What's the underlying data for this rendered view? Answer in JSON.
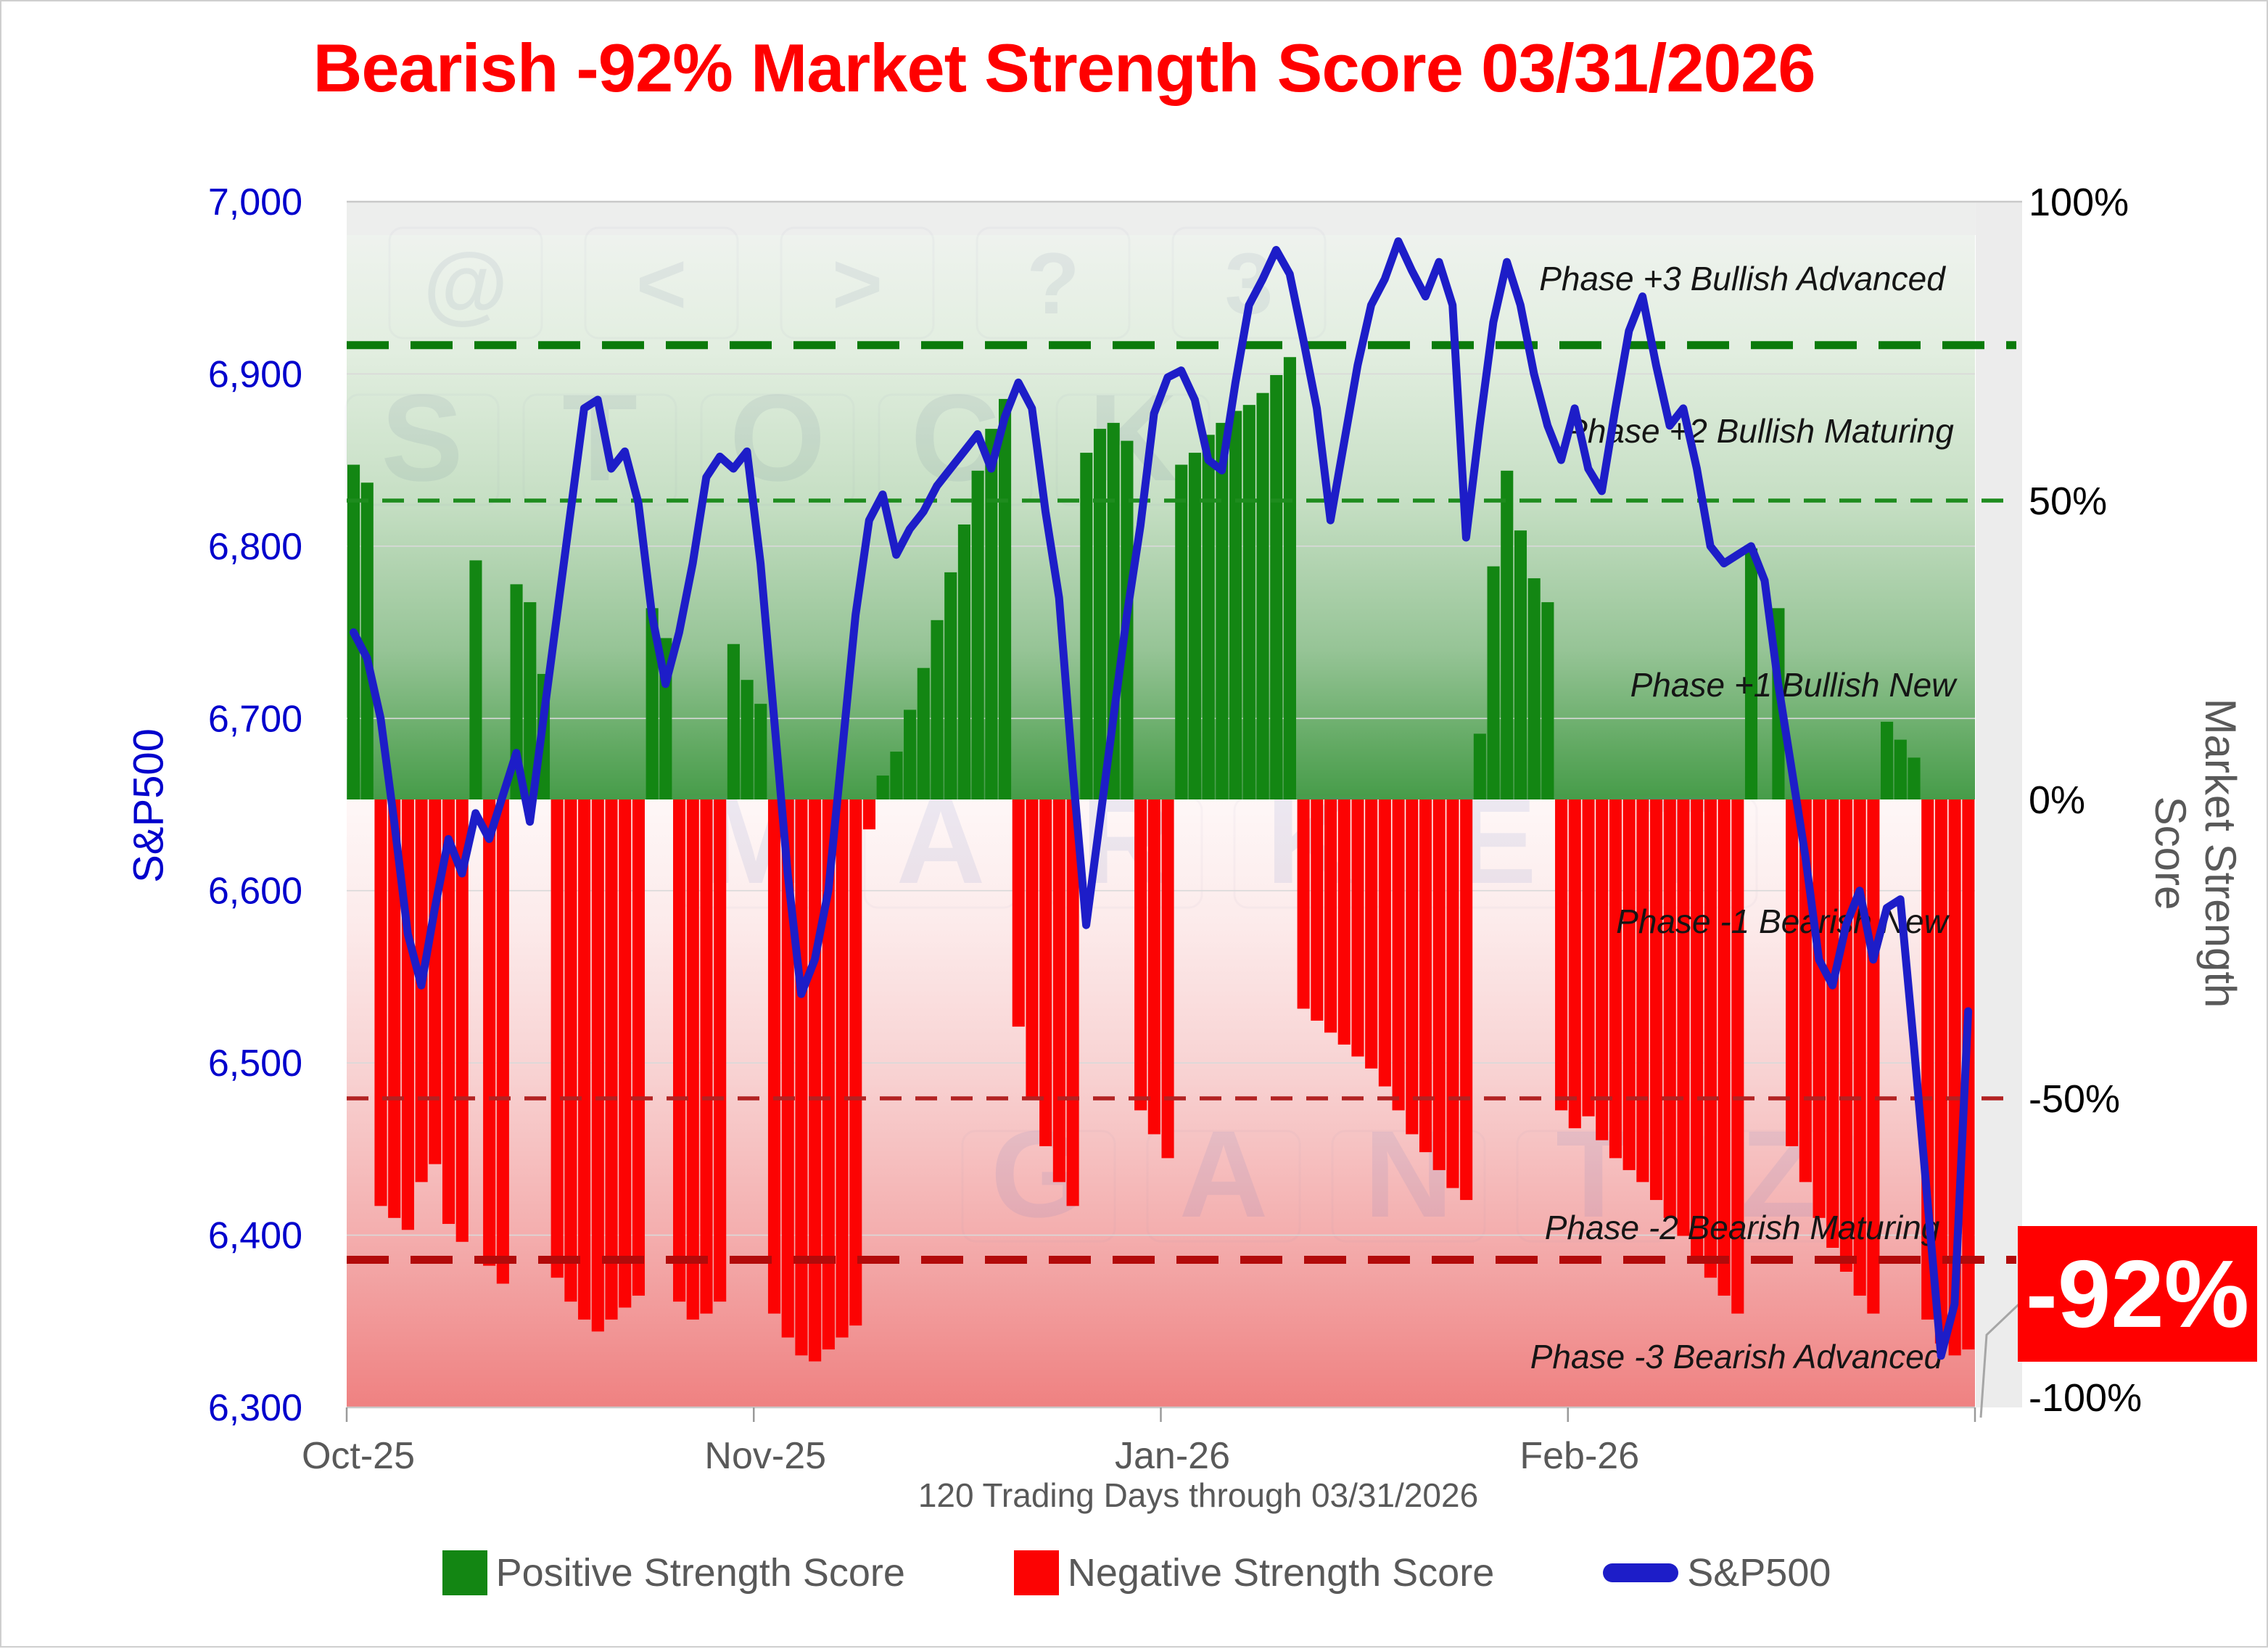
{
  "title": "Bearish -92% Market Strength Score 03/31/2026",
  "badge": {
    "value_label": "-92%",
    "background": "#FF0000",
    "text_color": "#FFFFFF"
  },
  "axes": {
    "left": {
      "title": "S&P500",
      "ticks": [
        "7,000",
        "6,900",
        "6,800",
        "6,700",
        "6,600",
        "6,500",
        "6,400",
        "6,300"
      ],
      "color": "#0000CC"
    },
    "right": {
      "title": "Market Strength Score",
      "ticks": [
        "100%",
        "50%",
        "0%",
        "-50%",
        "-100%"
      ],
      "color": "#595959"
    },
    "x": {
      "ticks": [
        "Oct-25",
        "Nov-25",
        "Jan-26",
        "Feb-26"
      ],
      "title": "120 Trading Days through 03/31/2026"
    }
  },
  "phases": [
    "Phase +3 Bullish Advanced",
    "Phase +2 Bullish Maturing",
    "Phase +1 Bullish New",
    "Phase -1 Bearish New",
    "Phase -2 Bearish Maturing",
    "Phase -3 Bearish Advanced"
  ],
  "legend": [
    {
      "label": "Positive Strength Score",
      "type": "box",
      "color": "#138613"
    },
    {
      "label": "Negative Strength Score",
      "type": "box",
      "color": "#FC0303"
    },
    {
      "label": "S&P500",
      "type": "line",
      "color": "#1D1DC8"
    }
  ],
  "watermark": {
    "symbols": [
      "@",
      "<",
      ">",
      "?",
      "3"
    ],
    "rows": [
      "STOCK",
      "MARKET",
      "GANTZ"
    ]
  },
  "colors": {
    "bar_positive": "#138613",
    "bar_negative": "#FC0303",
    "sp500_line": "#1D1DC8",
    "threshold_green_thick": "#0B7A0B",
    "threshold_green_thin": "#1E8C1E",
    "threshold_red_thin": "#B22222",
    "threshold_red_thick": "#B20A0A",
    "title_red": "#FF0000",
    "axis_blue": "#0000CC",
    "gray_text": "#595959"
  },
  "chart_data": {
    "type": "combo",
    "n_points": 120,
    "x_label": "120 Trading Days through 03/31/2026",
    "x_tick_labels": [
      "Oct-25",
      "Nov-25",
      "Jan-26",
      "Feb-26"
    ],
    "x_tick_interval_days": 30,
    "y_left": {
      "label": "S&P500",
      "min": 6300,
      "max": 7000,
      "tick_step": 100
    },
    "y_right": {
      "label": "Market Strength Score",
      "min": -100,
      "max": 100,
      "tick_step": 50,
      "unit": "%"
    },
    "current_score_pct": -92,
    "thresholds": [
      {
        "label": "Phase +3 boundary",
        "value_pct": 76,
        "style": "thick",
        "color": "#0B7A0B"
      },
      {
        "label": "Phase +2 boundary",
        "value_pct": 50,
        "style": "thin",
        "color": "#1E8C1E"
      },
      {
        "label": "Phase -2 boundary",
        "value_pct": -50,
        "style": "thin",
        "color": "#B22222"
      },
      {
        "label": "Phase -3 boundary",
        "value_pct": -77,
        "style": "thick",
        "color": "#B20A0A"
      }
    ],
    "series": [
      {
        "name": "Strength Score",
        "type": "bar",
        "unit": "%",
        "values": [
          56,
          53,
          -68,
          -70,
          -72,
          -64,
          -61,
          -71,
          -74,
          40,
          -78,
          -81,
          36,
          33,
          21,
          -80,
          -84,
          -87,
          -89,
          -87,
          -85,
          -83,
          32,
          27,
          -84,
          -87,
          -86,
          -84,
          26,
          20,
          16,
          -86,
          -90,
          -93,
          -94,
          -92,
          -90,
          -88,
          -5,
          4,
          8,
          15,
          22,
          30,
          38,
          46,
          55,
          62,
          67,
          -38,
          -50,
          -58,
          -64,
          -68,
          58,
          62,
          63,
          60,
          -52,
          -56,
          -60,
          56,
          58,
          61,
          63,
          65,
          66,
          68,
          71,
          74,
          -35,
          -37,
          -39,
          -41,
          -43,
          -45,
          -48,
          -52,
          -56,
          -59,
          -62,
          -65,
          -67,
          11,
          39,
          55,
          45,
          37,
          33,
          -52,
          -55,
          -53,
          -57,
          -60,
          -62,
          -64,
          -67,
          -70,
          -73,
          -77,
          -80,
          -83,
          -86,
          42,
          0,
          32,
          -58,
          -64,
          -70,
          -75,
          -79,
          -83,
          -86,
          13,
          10,
          7,
          -87,
          -91,
          -93,
          -92
        ]
      },
      {
        "name": "S&P500",
        "type": "line",
        "values": [
          6750,
          6735,
          6700,
          6640,
          6575,
          6545,
          6590,
          6630,
          6610,
          6645,
          6630,
          6655,
          6680,
          6640,
          6700,
          6760,
          6820,
          6880,
          6885,
          6845,
          6855,
          6825,
          6760,
          6720,
          6750,
          6790,
          6840,
          6852,
          6845,
          6855,
          6790,
          6700,
          6610,
          6540,
          6560,
          6600,
          6680,
          6760,
          6815,
          6830,
          6795,
          6810,
          6820,
          6835,
          6845,
          6855,
          6865,
          6845,
          6875,
          6895,
          6880,
          6820,
          6770,
          6670,
          6580,
          6640,
          6700,
          6760,
          6812,
          6877,
          6898,
          6902,
          6885,
          6850,
          6844,
          6895,
          6940,
          6955,
          6972,
          6958,
          6920,
          6880,
          6815,
          6860,
          6905,
          6940,
          6955,
          6977,
          6960,
          6945,
          6965,
          6940,
          6805,
          6870,
          6930,
          6965,
          6940,
          6900,
          6870,
          6850,
          6880,
          6845,
          6832,
          6880,
          6925,
          6945,
          6905,
          6870,
          6880,
          6845,
          6800,
          6790,
          6795,
          6800,
          6780,
          6720,
          6670,
          6620,
          6560,
          6545,
          6580,
          6600,
          6560,
          6590,
          6595,
          6510,
          6420,
          6330,
          6360,
          6530
        ]
      }
    ]
  }
}
